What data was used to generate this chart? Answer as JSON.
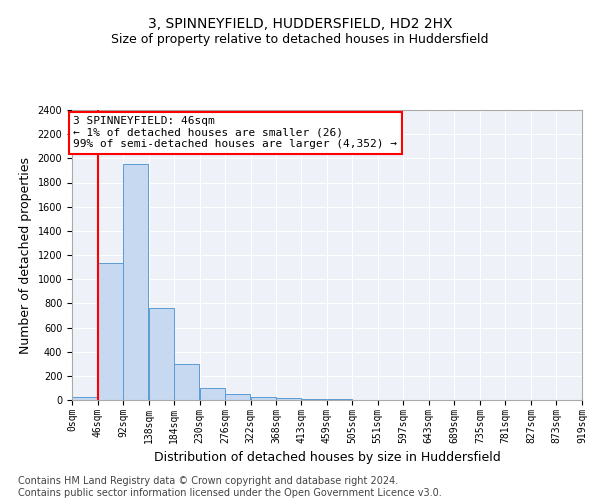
{
  "title": "3, SPINNEYFIELD, HUDDERSFIELD, HD2 2HX",
  "subtitle": "Size of property relative to detached houses in Huddersfield",
  "xlabel": "Distribution of detached houses by size in Huddersfield",
  "ylabel": "Number of detached properties",
  "bin_edges": [
    0,
    46,
    92,
    138,
    184,
    230,
    276,
    322,
    368,
    413,
    459,
    505,
    551,
    597,
    643,
    689,
    735,
    781,
    827,
    873,
    919
  ],
  "bar_heights": [
    26,
    1135,
    1950,
    760,
    300,
    100,
    50,
    25,
    15,
    8,
    5,
    3,
    2,
    2,
    1,
    1,
    1,
    1,
    1,
    1
  ],
  "bar_color": "#c6d9f0",
  "bar_edge_color": "#5b9bd5",
  "vline_x": 46,
  "vline_color": "red",
  "annotation_text": "3 SPINNEYFIELD: 46sqm\n← 1% of detached houses are smaller (26)\n99% of semi-detached houses are larger (4,352) →",
  "annotation_box_color": "white",
  "annotation_box_edge_color": "red",
  "ylim": [
    0,
    2400
  ],
  "yticks": [
    0,
    200,
    400,
    600,
    800,
    1000,
    1200,
    1400,
    1600,
    1800,
    2000,
    2200,
    2400
  ],
  "tick_labels": [
    "0sqm",
    "46sqm",
    "92sqm",
    "138sqm",
    "184sqm",
    "230sqm",
    "276sqm",
    "322sqm",
    "368sqm",
    "413sqm",
    "459sqm",
    "505sqm",
    "551sqm",
    "597sqm",
    "643sqm",
    "689sqm",
    "735sqm",
    "781sqm",
    "827sqm",
    "873sqm",
    "919sqm"
  ],
  "footer_text": "Contains HM Land Registry data © Crown copyright and database right 2024.\nContains public sector information licensed under the Open Government Licence v3.0.",
  "bg_color": "#eef2f8",
  "grid_color": "white",
  "title_fontsize": 10,
  "subtitle_fontsize": 9,
  "axis_label_fontsize": 9,
  "tick_fontsize": 7,
  "annotation_fontsize": 8,
  "footer_fontsize": 7
}
